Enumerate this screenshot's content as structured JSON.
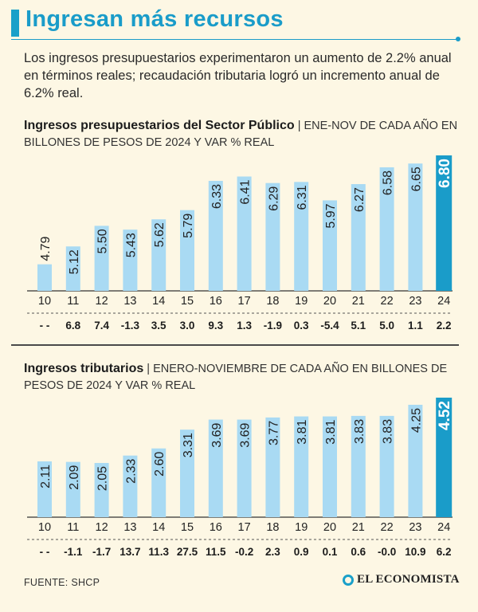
{
  "header": {
    "title": "Ingresan más recursos",
    "intro": "Los ingresos presupuestarios experimentaron un aumento de 2.2% anual en términos reales; recaudación tributaria logró un incremento anual de 6.2% real."
  },
  "colors": {
    "accent": "#1a9cc9",
    "bar": "#a9daf3",
    "bar_highlight": "#1a9cc9",
    "background": "#fdf7e4"
  },
  "chart1_header": {
    "title": "Ingresos presupuestarios del Sector Público",
    "detail": "| ENE-NOV DE CADA AÑO EN BILLONES DE PESOS DE 2024 Y VAR % REAL"
  },
  "chart2_header": {
    "title": "Ingresos tributarios",
    "detail": "| ENERO-NOVIEMBRE DE CADA AÑO EN BILLONES DE PESOS DE 2024 Y VAR % REAL"
  },
  "chart_data": [
    {
      "type": "bar",
      "title": "Ingresos presupuestarios del Sector Público",
      "categories": [
        "10",
        "11",
        "12",
        "13",
        "14",
        "15",
        "16",
        "17",
        "18",
        "19",
        "20",
        "21",
        "22",
        "23",
        "24"
      ],
      "values": [
        4.79,
        5.12,
        5.5,
        5.43,
        5.62,
        5.79,
        6.33,
        6.41,
        6.29,
        6.31,
        5.97,
        6.27,
        6.58,
        6.65,
        6.8
      ],
      "labels": [
        "4.79",
        "5.12",
        "5.50",
        "5.43",
        "5.62",
        "5.79",
        "6.33",
        "6.41",
        "6.29",
        "6.31",
        "5.97",
        "6.27",
        "6.58",
        "6.65",
        "6.80"
      ],
      "var_real": [
        "- -",
        "6.8",
        "7.4",
        "-1.3",
        "3.5",
        "3.0",
        "9.3",
        "1.3",
        "-1.9",
        "0.3",
        "-5.4",
        "5.1",
        "5.0",
        "1.1",
        "2.2"
      ],
      "highlight_index": 14,
      "ylim": [
        4.3,
        6.8
      ]
    },
    {
      "type": "bar",
      "title": "Ingresos tributarios",
      "categories": [
        "10",
        "11",
        "12",
        "13",
        "14",
        "15",
        "16",
        "17",
        "18",
        "19",
        "20",
        "21",
        "22",
        "23",
        "24"
      ],
      "values": [
        2.11,
        2.09,
        2.05,
        2.33,
        2.6,
        3.31,
        3.69,
        3.69,
        3.77,
        3.81,
        3.81,
        3.83,
        3.83,
        4.25,
        4.52
      ],
      "labels": [
        "2.11",
        "2.09",
        "2.05",
        "2.33",
        "2.60",
        "3.31",
        "3.69",
        "3.69",
        "3.77",
        "3.81",
        "3.81",
        "3.83",
        "3.83",
        "4.25",
        "4.52"
      ],
      "var_real": [
        "- -",
        "-1.1",
        "-1.7",
        "13.7",
        "11.3",
        "27.5",
        "11.5",
        "-0.2",
        "2.3",
        "0.9",
        "0.1",
        "0.6",
        "-0.0",
        "10.9",
        "6.2"
      ],
      "highlight_index": 14,
      "ylim": [
        0,
        4.52
      ]
    }
  ],
  "footer": {
    "source": "FUENTE: SHCP",
    "brand": "EL ECONOMISTA"
  }
}
